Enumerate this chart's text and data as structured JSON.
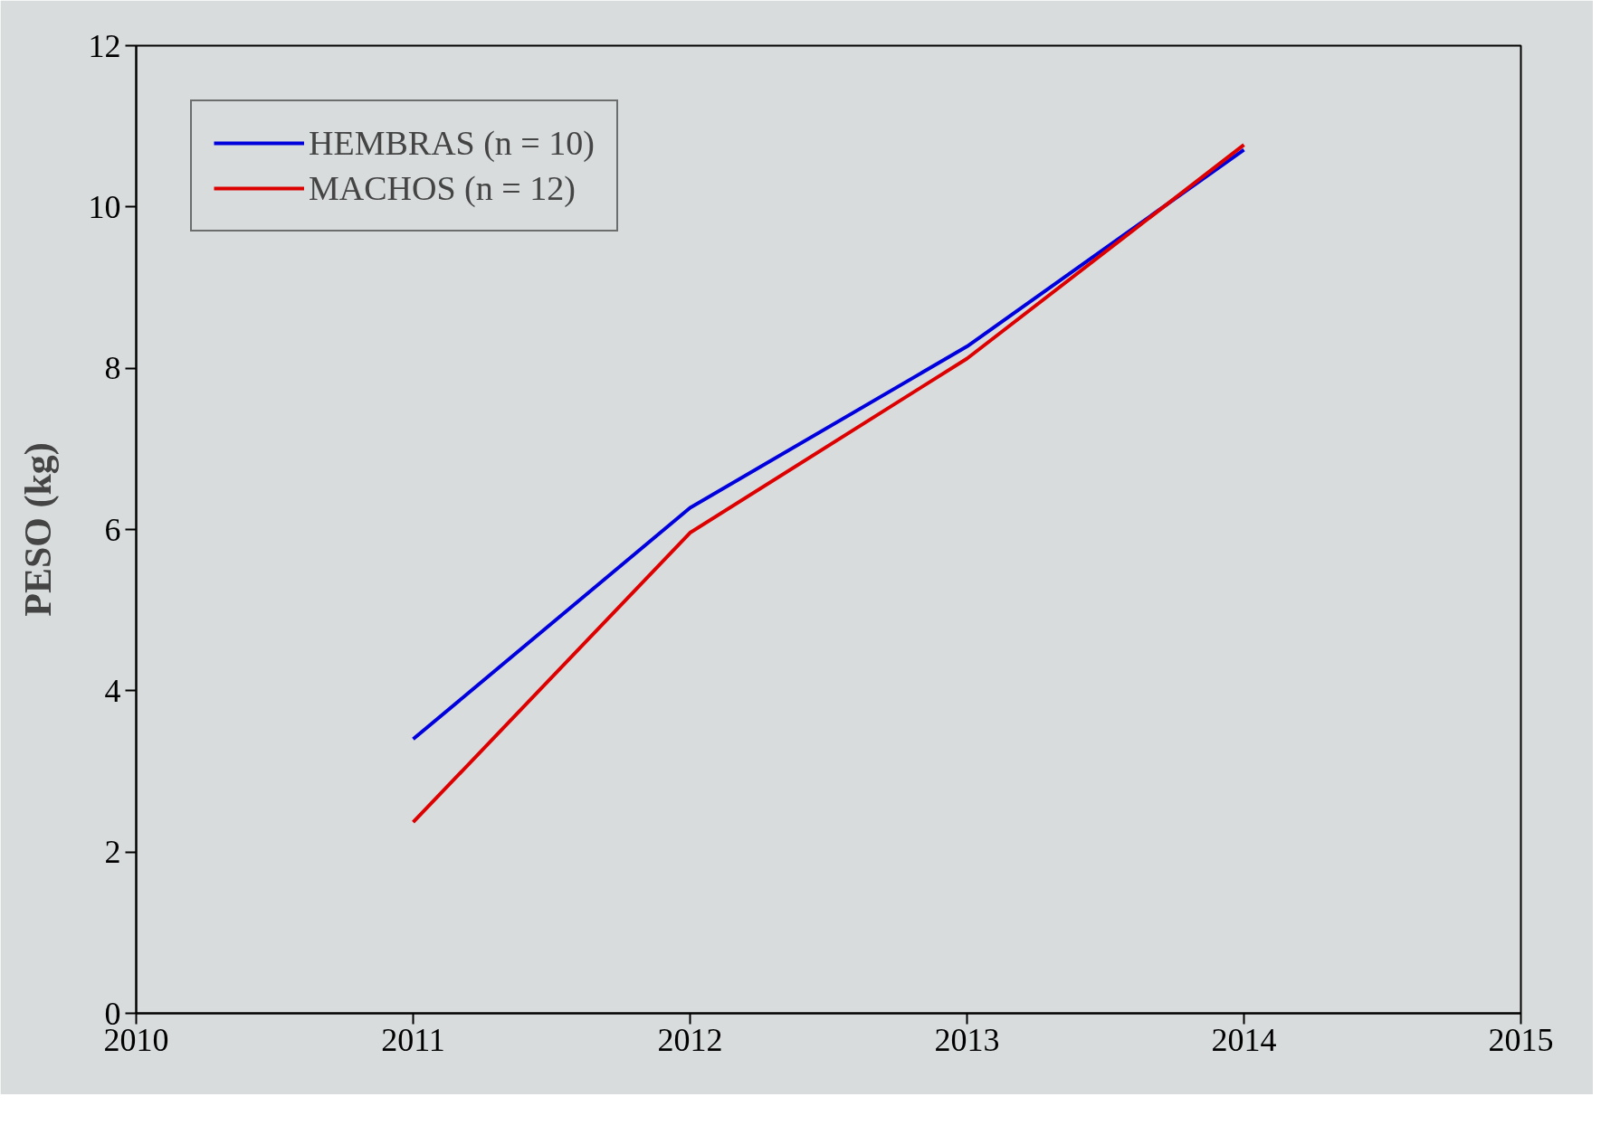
{
  "chart_data": {
    "type": "line",
    "ylabel": "PESO (kg)",
    "x": [
      2011,
      2012,
      2013,
      2014
    ],
    "series": [
      {
        "name": "HEMBRAS (n = 10)",
        "color": "#0000dd",
        "values": [
          3.4,
          6.27,
          8.27,
          10.71
        ]
      },
      {
        "name": "MACHOS (n = 12)",
        "color": "#dd0000",
        "values": [
          2.37,
          5.96,
          8.12,
          10.77
        ]
      }
    ],
    "xlim": [
      2010,
      2015
    ],
    "xticks": [
      2010,
      2011,
      2012,
      2013,
      2014,
      2015
    ],
    "ylim": [
      0,
      12
    ],
    "yticks": [
      0,
      2,
      4,
      6,
      8,
      10,
      12
    ],
    "grid": false,
    "legend": "top left",
    "marker": "none",
    "line_style": "solid"
  }
}
